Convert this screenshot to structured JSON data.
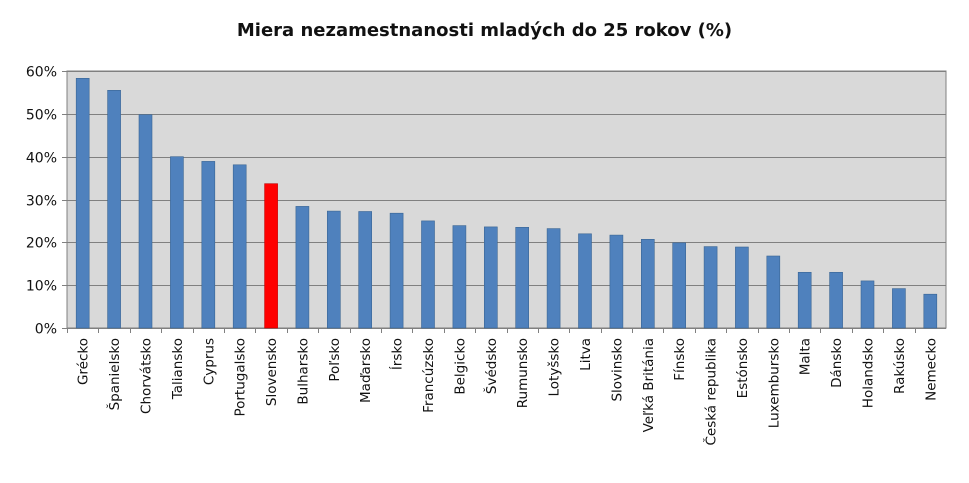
{
  "chart_data": {
    "type": "bar",
    "title": "Miera nezamestnanosti mladých do 25 rokov (%)",
    "xlabel": "",
    "ylabel": "",
    "ylim": [
      0,
      60
    ],
    "yticks": [
      0,
      10,
      20,
      30,
      40,
      50,
      60
    ],
    "ytick_labels": [
      "0%",
      "10%",
      "20%",
      "30%",
      "40%",
      "50%",
      "60%"
    ],
    "grid": true,
    "legend": "none",
    "categories": [
      "Grécko",
      "Španielsko",
      "Chorvátsko",
      "Taliansko",
      "Cyprus",
      "Portugalsko",
      "Slovensko",
      "Bulharsko",
      "Poľsko",
      "Maďarsko",
      "Írsko",
      "Francúzsko",
      "Belgicko",
      "Švédsko",
      "Rumunsko",
      "Lotyšsko",
      "Litva",
      "Slovinsko",
      "Veľká Británia",
      "Fínsko",
      "Česká republika",
      "Estónsko",
      "Luxembursko",
      "Malta",
      "Dánsko",
      "Holandsko",
      "Rakúsko",
      "Nemecko"
    ],
    "values": [
      58.3,
      55.5,
      49.8,
      40.0,
      38.9,
      38.1,
      33.7,
      28.4,
      27.3,
      27.2,
      26.8,
      25.0,
      23.9,
      23.6,
      23.5,
      23.2,
      22.0,
      21.7,
      20.7,
      19.9,
      19.0,
      18.9,
      16.8,
      13.0,
      13.0,
      11.0,
      9.2,
      7.9
    ],
    "colors": {
      "default": "#4f81bd",
      "highlight": "#ff0000",
      "plot_background": "#d9d9d9",
      "gridline": "#808080"
    },
    "highlight_category": "Slovensko"
  }
}
